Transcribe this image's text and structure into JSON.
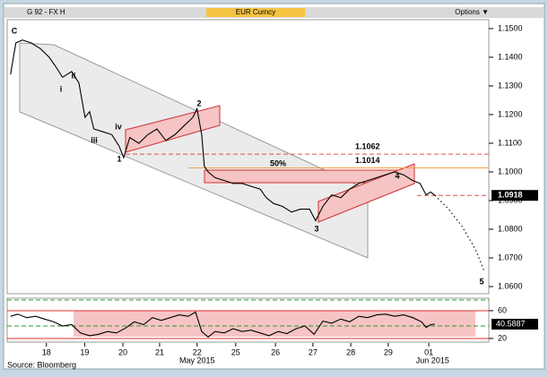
{
  "header": {
    "left": "G 92 - FX H",
    "center": "EUR Curncy",
    "right": "Options ▼"
  },
  "source": "Source: Bloomberg",
  "chart_data": [
    {
      "type": "line",
      "xlim": [
        -0.98,
        11.57
      ],
      "ylim": [
        1.0575,
        1.1531
      ],
      "yticks": [
        {
          "value": 1.06,
          "label": "1.0600"
        },
        {
          "value": 1.07,
          "label": "1.0700"
        },
        {
          "value": 1.08,
          "label": "1.0800"
        },
        {
          "value": 1.09,
          "label": "1.0900"
        },
        {
          "value": 1.1,
          "label": "1.1000"
        },
        {
          "value": 1.11,
          "label": "1.1100"
        },
        {
          "value": 1.12,
          "label": "1.1200"
        },
        {
          "value": 1.13,
          "label": "1.1300"
        },
        {
          "value": 1.14,
          "label": "1.1400"
        },
        {
          "value": 1.15,
          "label": "1.1500"
        }
      ],
      "xticks": [
        {
          "value": 0,
          "label": "18"
        },
        {
          "value": 1,
          "label": "19"
        },
        {
          "value": 2,
          "label": "20"
        },
        {
          "value": 2.96,
          "label": "21"
        },
        {
          "value": 3.94,
          "label": "22"
        },
        {
          "value": 4.95,
          "label": "25"
        },
        {
          "value": 5.99,
          "label": "26"
        },
        {
          "value": 6.97,
          "label": "27"
        },
        {
          "value": 7.96,
          "label": "28"
        },
        {
          "value": 8.94,
          "label": "29"
        },
        {
          "value": 10,
          "label": "01"
        }
      ],
      "xgroup_labels": [
        {
          "value": 3.94,
          "label": "May 2015"
        },
        {
          "value": 10.1,
          "label": "Jun 2015"
        }
      ],
      "series": [
        {
          "color": "#000000",
          "line_style": "solid",
          "x": [
            -0.94,
            -0.8,
            -0.63,
            -0.4,
            -0.16,
            0.07,
            0.23,
            0.42,
            0.66,
            0.85,
            1.01,
            1.13,
            1.24,
            1.48,
            1.71,
            1.9,
            2.02,
            2.18,
            2.42,
            2.65,
            2.89,
            3.12,
            3.36,
            3.59,
            3.83,
            3.94,
            4.06,
            4.13,
            4.23,
            4.41,
            4.65,
            4.88,
            5.12,
            5.35,
            5.59,
            5.75,
            5.94,
            6.17,
            6.41,
            6.64,
            6.88,
            7.04,
            7.23,
            7.46,
            7.7,
            7.93,
            8.17,
            8.4,
            8.64,
            8.87,
            9.11,
            9.34,
            9.58,
            9.77,
            9.93,
            10.05,
            10.16
          ],
          "values": [
            1.134,
            1.145,
            1.146,
            1.145,
            1.143,
            1.14,
            1.137,
            1.133,
            1.135,
            1.131,
            1.119,
            1.121,
            1.115,
            1.114,
            1.113,
            1.109,
            1.105,
            1.112,
            1.11,
            1.113,
            1.115,
            1.111,
            1.113,
            1.116,
            1.119,
            1.122,
            1.113,
            1.102,
            1.1,
            1.098,
            1.097,
            1.096,
            1.096,
            1.095,
            1.094,
            1.091,
            1.089,
            1.088,
            1.086,
            1.087,
            1.087,
            1.083,
            1.088,
            1.092,
            1.091,
            1.094,
            1.096,
            1.097,
            1.098,
            1.099,
            1.1,
            1.099,
            1.097,
            1.096,
            1.092,
            1.093,
            1.0918
          ]
        },
        {
          "color": "#000000",
          "line_style": "dotted",
          "x": [
            10.16,
            10.52,
            10.87,
            11.22,
            11.46
          ],
          "values": [
            1.0918,
            1.087,
            1.081,
            1.073,
            1.065
          ]
        }
      ],
      "levels": [
        {
          "value": 1.1062,
          "color": "#e05050",
          "style": "dashed"
        },
        {
          "value": 1.1014,
          "color": "#f0a050",
          "style": "solid"
        },
        {
          "value": 1.0918,
          "color": "#e05050",
          "style": "dashed"
        }
      ],
      "annotations": [
        "C",
        "i",
        "ii",
        "iii",
        "iv",
        "1",
        "2",
        "3",
        "4",
        "5",
        "50%"
      ]
    },
    {
      "type": "line",
      "xlim": [
        -0.98,
        11.57
      ],
      "ylim": [
        14.8,
        78
      ],
      "yticks": [
        20,
        60
      ],
      "grid_color": "#e03030",
      "last_value": 40.5887,
      "series": [
        {
          "color": "#000000",
          "line_style": "solid",
          "x": [
            -0.94,
            -0.75,
            -0.52,
            -0.28,
            -0.05,
            0.19,
            0.42,
            0.66,
            0.89,
            1.13,
            1.36,
            1.6,
            1.83,
            2.07,
            2.3,
            2.54,
            2.77,
            3.0,
            3.24,
            3.47,
            3.71,
            3.9,
            4.06,
            4.23,
            4.41,
            4.65,
            4.88,
            5.12,
            5.35,
            5.59,
            5.82,
            6.06,
            6.29,
            6.53,
            6.76,
            7.0,
            7.23,
            7.46,
            7.7,
            7.93,
            8.17,
            8.4,
            8.64,
            8.87,
            9.11,
            9.34,
            9.58,
            9.81,
            9.93,
            10.05,
            10.16
          ],
          "values": [
            52,
            55,
            50,
            52,
            48,
            44,
            38,
            40,
            28,
            24,
            26,
            30,
            28,
            35,
            44,
            40,
            50,
            46,
            50,
            54,
            52,
            58,
            30,
            22,
            30,
            28,
            34,
            30,
            32,
            28,
            24,
            30,
            27,
            34,
            38,
            26,
            45,
            42,
            48,
            44,
            52,
            50,
            54,
            55,
            52,
            54,
            50,
            44,
            36,
            40,
            40.5887
          ]
        }
      ]
    }
  ]
}
